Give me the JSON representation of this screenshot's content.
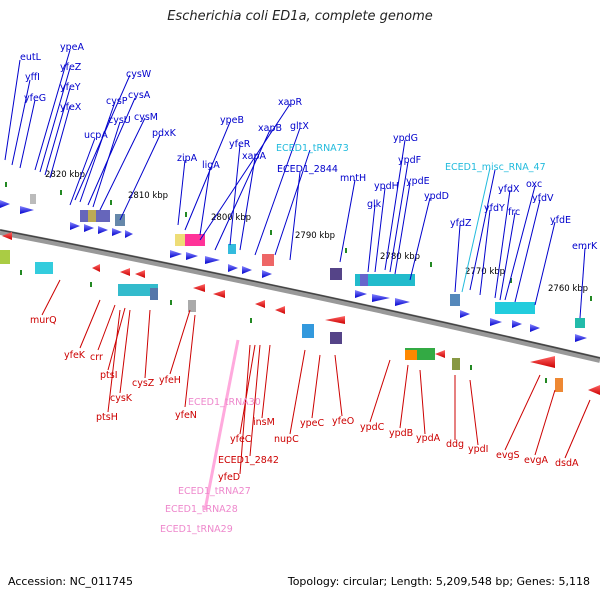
{
  "title": "Escherichia coli ED1a, complete genome",
  "footer": {
    "accession": "Accession: NC_011745",
    "summary": "Topology: circular; Length: 5,209,548 bp; Genes: 5,118"
  },
  "colors": {
    "forward": "#0000dd",
    "reverse": "#dd0000",
    "trna": "#ee88cc",
    "misc_rna": "#22bbdd",
    "backbone": "#888888"
  },
  "kbp_ticks": [
    "2820 kbp",
    "2810 kbp",
    "2800 kbp",
    "2790 kbp",
    "2780 kbp",
    "2770 kbp",
    "2760 kbp"
  ],
  "top_genes": [
    "eutL",
    "yffI",
    "yfeG",
    "ypeA",
    "yfeZ",
    "yfeY",
    "yfeX",
    "cysW",
    "cysP",
    "cysA",
    "cysU",
    "cysM",
    "ucpA",
    "pdxK",
    "xapR",
    "ypeB",
    "xapB",
    "gltX",
    "zipA",
    "yfeR",
    "ligA",
    "xapA",
    "ECED1_tRNA73",
    "ECED1_2844",
    "mntH",
    "ypdG",
    "ypdF",
    "ypdH",
    "ypdE",
    "glk",
    "ypdD",
    "ECED1_misc_RNA_47",
    "yfdX",
    "oxc",
    "yfdZ",
    "yfdY",
    "frc",
    "yfdV",
    "yfdE",
    "emrK"
  ],
  "bottom_genes": [
    "murQ",
    "yfeK",
    "crr",
    "ptsI",
    "cysZ",
    "cysK",
    "ptsH",
    "yfeH",
    "yfeN",
    "yfeC",
    "insM",
    "nupC",
    "ypeC",
    "yfeO",
    "ypdC",
    "ypdB",
    "ypdA",
    "ddg",
    "ypdI",
    "evgS",
    "evgA",
    "dsdA",
    "ECED1_2842",
    "yfeD"
  ],
  "trna_genes": [
    "ECED1_tRNA30",
    "ECED1_tRNA27",
    "ECED1_tRNA28",
    "ECED1_tRNA29"
  ]
}
